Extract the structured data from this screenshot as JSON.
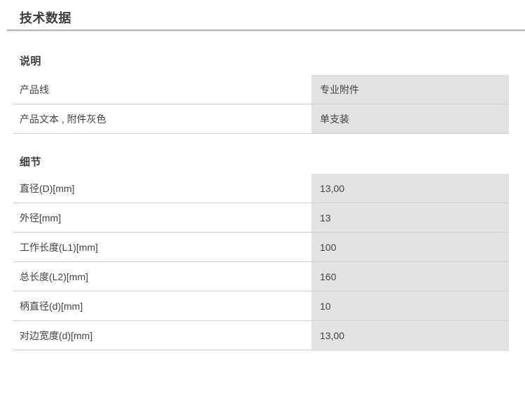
{
  "page": {
    "title": "技术数据"
  },
  "sections": {
    "description": {
      "heading": "说明",
      "rows": [
        {
          "label": "产品线",
          "value": "专业附件"
        },
        {
          "label": "产品文本 , 附件灰色",
          "value": "单支装"
        }
      ]
    },
    "details": {
      "heading": "细节",
      "rows": [
        {
          "label": "直径(D)[mm]",
          "value": "13,00"
        },
        {
          "label": "外径[mm]",
          "value": "13"
        },
        {
          "label": "工作长度(L1)[mm]",
          "value": "100"
        },
        {
          "label": "总长度(L2)[mm]",
          "value": "160"
        },
        {
          "label": "柄直径(d)[mm]",
          "value": "10"
        },
        {
          "label": "对边宽度(d)[mm]",
          "value": "13,00"
        }
      ]
    }
  },
  "colors": {
    "heading_text": "#3c3c3c",
    "body_text": "#424242",
    "value_cell_bg": "#e2e2e2",
    "row_divider": "#cfcfcf",
    "title_rule": "#b5b5b5",
    "page_bg": "#ffffff"
  }
}
